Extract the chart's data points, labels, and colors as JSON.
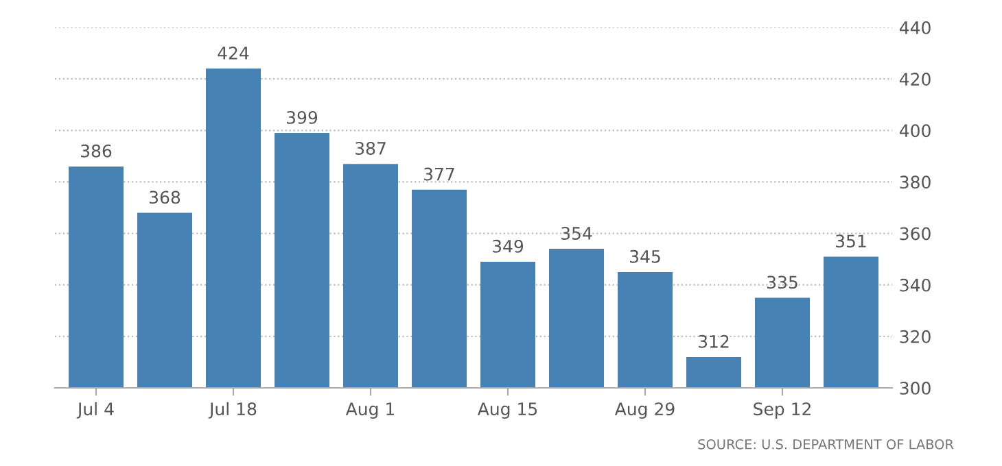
{
  "chart_data": {
    "type": "bar",
    "categories": [
      "Jul 4",
      null,
      "Jul 18",
      null,
      "Aug 1",
      null,
      "Aug 15",
      null,
      "Aug 29",
      null,
      "Sep 12",
      null
    ],
    "values": [
      386,
      368,
      424,
      399,
      387,
      377,
      349,
      354,
      345,
      312,
      335,
      351
    ],
    "color": "#4682b4",
    "ylim": [
      300,
      440
    ],
    "yticks": [
      300,
      320,
      340,
      360,
      380,
      400,
      420,
      440
    ],
    "grid": "y",
    "data_labels": true,
    "annotations": [
      "SOURCE: U.S. DEPARTMENT OF LABOR"
    ]
  }
}
